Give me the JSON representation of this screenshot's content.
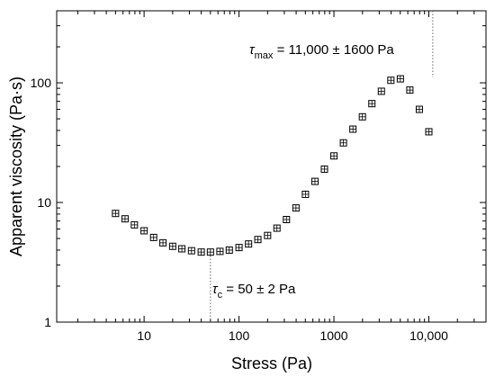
{
  "chart_data": {
    "type": "scatter",
    "xlabel": "Stress (Pa)",
    "ylabel": "Apparent viscosity (Pa·s)",
    "x_scale": "log",
    "y_scale": "log",
    "xlim": [
      1.2,
      40000
    ],
    "ylim": [
      1,
      400
    ],
    "x_ticks": [
      10,
      100,
      1000,
      10000
    ],
    "x_tick_labels": [
      "10",
      "100",
      "1000",
      "10,000"
    ],
    "y_ticks": [
      1,
      10,
      100
    ],
    "y_tick_labels": [
      "1",
      "10",
      "100"
    ],
    "grid": false,
    "legend": "none",
    "points": [
      {
        "x": 5,
        "y": 8.1
      },
      {
        "x": 6.3,
        "y": 7.3
      },
      {
        "x": 7.9,
        "y": 6.5
      },
      {
        "x": 10,
        "y": 5.8
      },
      {
        "x": 12.6,
        "y": 5.1
      },
      {
        "x": 15.8,
        "y": 4.6
      },
      {
        "x": 20,
        "y": 4.3
      },
      {
        "x": 25,
        "y": 4.1
      },
      {
        "x": 31.6,
        "y": 3.95
      },
      {
        "x": 40,
        "y": 3.85
      },
      {
        "x": 50,
        "y": 3.85
      },
      {
        "x": 63,
        "y": 3.9
      },
      {
        "x": 79,
        "y": 4.0
      },
      {
        "x": 100,
        "y": 4.2
      },
      {
        "x": 126,
        "y": 4.5
      },
      {
        "x": 158,
        "y": 4.9
      },
      {
        "x": 200,
        "y": 5.3
      },
      {
        "x": 251,
        "y": 6.1
      },
      {
        "x": 316,
        "y": 7.2
      },
      {
        "x": 398,
        "y": 9.0
      },
      {
        "x": 501,
        "y": 11.7
      },
      {
        "x": 631,
        "y": 15
      },
      {
        "x": 794,
        "y": 19
      },
      {
        "x": 1000,
        "y": 24.5
      },
      {
        "x": 1259,
        "y": 31.5
      },
      {
        "x": 1585,
        "y": 41
      },
      {
        "x": 1995,
        "y": 52
      },
      {
        "x": 2512,
        "y": 67
      },
      {
        "x": 3162,
        "y": 85
      },
      {
        "x": 3981,
        "y": 105
      },
      {
        "x": 5012,
        "y": 108
      },
      {
        "x": 6310,
        "y": 87
      },
      {
        "x": 7943,
        "y": 60
      },
      {
        "x": 10000,
        "y": 39
      }
    ],
    "annotations": [
      {
        "id": "tau_max",
        "symbol": "τ",
        "sub": "max",
        "text": " = 11,000 ± 1600 Pa",
        "x": 11000
      },
      {
        "id": "tau_c",
        "symbol": "τ",
        "sub": "c",
        "text": " = 50 ± 2 Pa",
        "x": 50
      }
    ]
  }
}
